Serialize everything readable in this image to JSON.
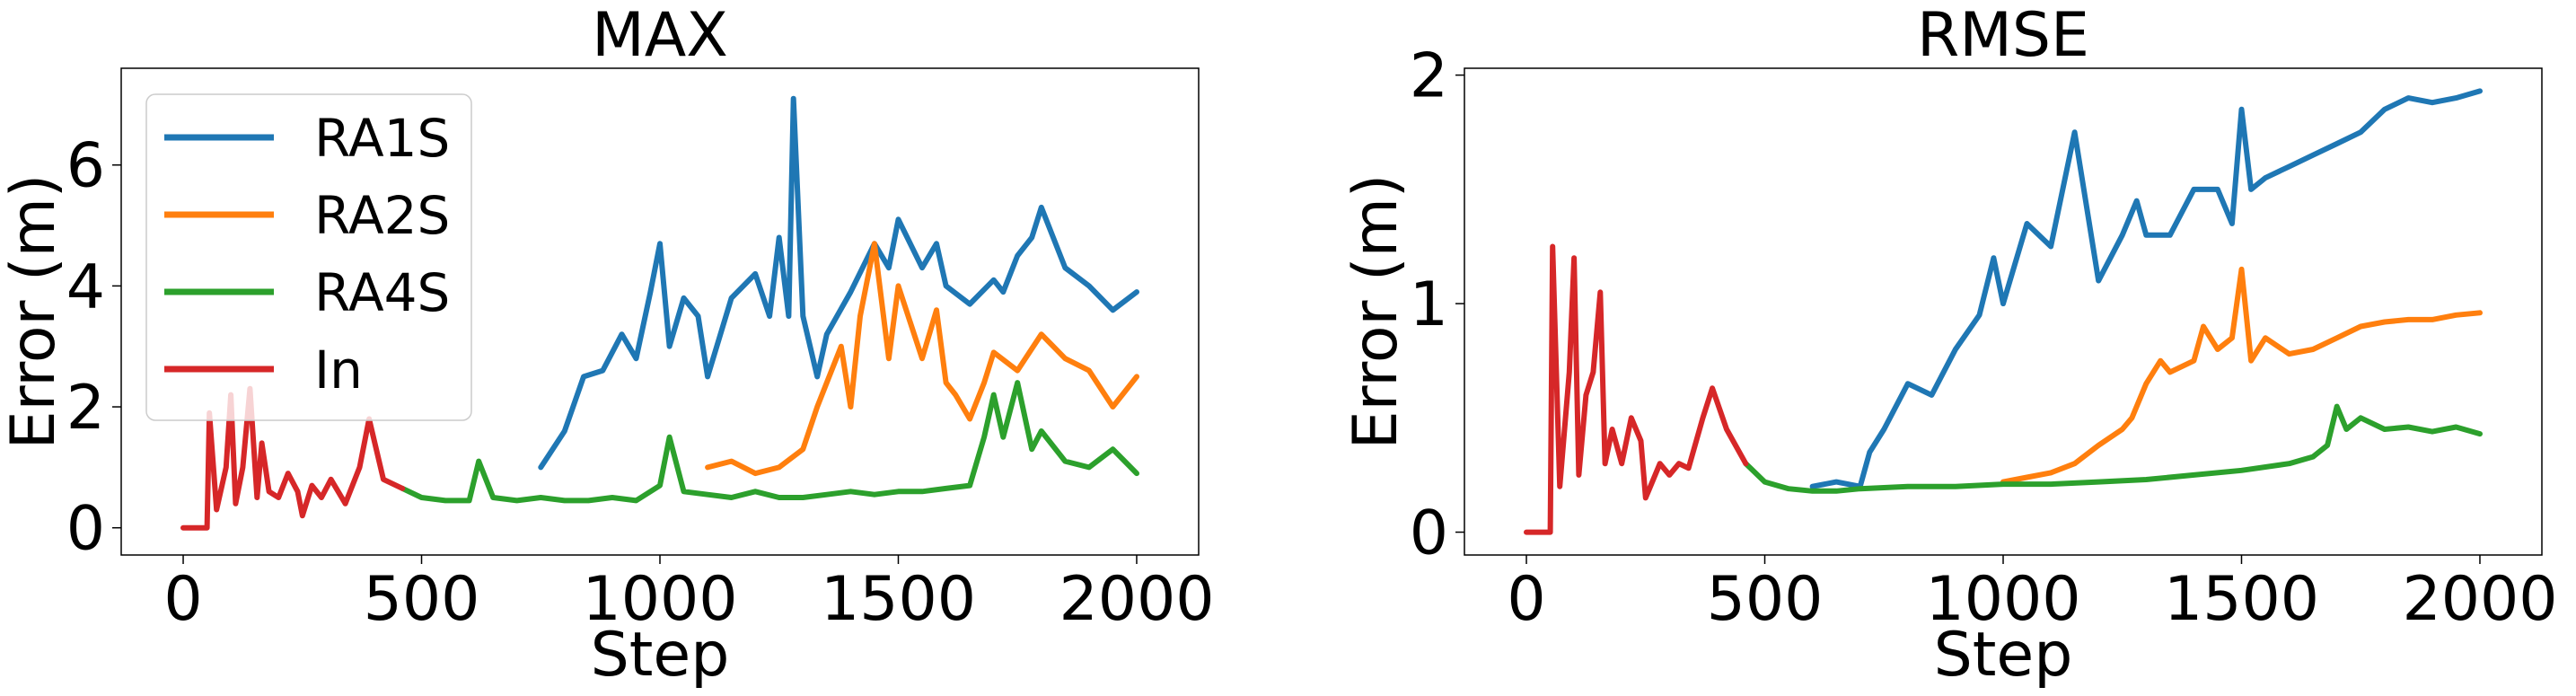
{
  "chart_data": [
    {
      "type": "line",
      "title": "MAX",
      "xlabel": "Step",
      "ylabel": "Error (m)",
      "xlim": [
        -130,
        2130
      ],
      "ylim": [
        -0.45,
        7.6
      ],
      "xticks": [
        0,
        500,
        1000,
        1500,
        2000
      ],
      "xtick_labels": [
        "0",
        "500",
        "1000",
        "1500",
        "2000"
      ],
      "yticks": [
        0,
        2,
        4,
        6
      ],
      "ytick_labels": [
        "0",
        "2",
        "4",
        "6"
      ],
      "legend": {
        "placement": "upper-left",
        "entries": [
          "RA1S",
          "RA2S",
          "RA4S",
          "In"
        ]
      },
      "grid": false,
      "series": [
        {
          "name": "RA1S",
          "color": "#1f77b4",
          "x": [
            750,
            800,
            840,
            880,
            920,
            950,
            980,
            1000,
            1020,
            1050,
            1080,
            1100,
            1150,
            1200,
            1230,
            1250,
            1270,
            1280,
            1300,
            1330,
            1350,
            1400,
            1450,
            1480,
            1500,
            1550,
            1580,
            1600,
            1650,
            1700,
            1720,
            1750,
            1780,
            1800,
            1820,
            1850,
            1900,
            1950,
            2000
          ],
          "y": [
            1.0,
            1.6,
            2.5,
            2.6,
            3.2,
            2.8,
            3.9,
            4.7,
            3.0,
            3.8,
            3.5,
            2.5,
            3.8,
            4.2,
            3.5,
            4.8,
            3.5,
            7.1,
            3.5,
            2.5,
            3.2,
            3.9,
            4.7,
            4.3,
            5.1,
            4.3,
            4.7,
            4.0,
            3.7,
            4.1,
            3.9,
            4.5,
            4.8,
            5.3,
            4.9,
            4.3,
            4.0,
            3.6,
            3.9
          ]
        },
        {
          "name": "RA2S",
          "color": "#ff7f0e",
          "x": [
            1100,
            1150,
            1200,
            1250,
            1300,
            1330,
            1350,
            1380,
            1400,
            1420,
            1450,
            1480,
            1500,
            1550,
            1580,
            1600,
            1620,
            1650,
            1680,
            1700,
            1750,
            1800,
            1850,
            1900,
            1950,
            2000
          ],
          "y": [
            1.0,
            1.1,
            0.9,
            1.0,
            1.3,
            2.0,
            2.4,
            3.0,
            2.0,
            3.5,
            4.7,
            2.8,
            4.0,
            2.8,
            3.6,
            2.4,
            2.2,
            1.8,
            2.4,
            2.9,
            2.6,
            3.2,
            2.8,
            2.6,
            2.0,
            2.5
          ]
        },
        {
          "name": "RA4S",
          "color": "#2ca02c",
          "x": [
            460,
            500,
            550,
            600,
            620,
            650,
            700,
            750,
            800,
            850,
            900,
            950,
            1000,
            1020,
            1050,
            1100,
            1150,
            1200,
            1250,
            1300,
            1350,
            1400,
            1450,
            1500,
            1550,
            1600,
            1650,
            1680,
            1700,
            1720,
            1750,
            1780,
            1800,
            1850,
            1900,
            1950,
            2000
          ],
          "y": [
            0.65,
            0.5,
            0.45,
            0.45,
            1.1,
            0.5,
            0.45,
            0.5,
            0.45,
            0.45,
            0.5,
            0.45,
            0.7,
            1.5,
            0.6,
            0.55,
            0.5,
            0.6,
            0.5,
            0.5,
            0.55,
            0.6,
            0.55,
            0.6,
            0.6,
            0.65,
            0.7,
            1.5,
            2.2,
            1.5,
            2.4,
            1.3,
            1.6,
            1.1,
            1.0,
            1.3,
            0.9
          ]
        },
        {
          "name": "In",
          "color": "#d62728",
          "x": [
            0,
            20,
            40,
            50,
            55,
            70,
            90,
            100,
            110,
            125,
            140,
            155,
            165,
            180,
            200,
            220,
            240,
            250,
            270,
            290,
            310,
            340,
            370,
            390,
            420,
            460
          ],
          "y": [
            0,
            0,
            0,
            0,
            1.9,
            0.3,
            1.0,
            2.2,
            0.4,
            1.0,
            2.3,
            0.5,
            1.4,
            0.6,
            0.5,
            0.9,
            0.6,
            0.2,
            0.7,
            0.5,
            0.8,
            0.4,
            1.0,
            1.8,
            0.8,
            0.65
          ]
        }
      ]
    },
    {
      "type": "line",
      "title": "RMSE",
      "xlabel": "Step",
      "ylabel": "Error (m)",
      "xlim": [
        -130,
        2130
      ],
      "ylim": [
        -0.1,
        2.03
      ],
      "xticks": [
        0,
        500,
        1000,
        1500,
        2000
      ],
      "xtick_labels": [
        "0",
        "500",
        "1000",
        "1500",
        "2000"
      ],
      "yticks": [
        0,
        1,
        2
      ],
      "ytick_labels": [
        "0",
        "1",
        "2"
      ],
      "grid": false,
      "series": [
        {
          "name": "RA1S",
          "color": "#1f77b4",
          "x": [
            600,
            650,
            700,
            720,
            750,
            800,
            850,
            900,
            950,
            980,
            1000,
            1050,
            1100,
            1150,
            1200,
            1250,
            1280,
            1300,
            1350,
            1400,
            1450,
            1480,
            1500,
            1520,
            1550,
            1600,
            1650,
            1700,
            1750,
            1800,
            1850,
            1900,
            1950,
            2000
          ],
          "y": [
            0.2,
            0.22,
            0.2,
            0.35,
            0.45,
            0.65,
            0.6,
            0.8,
            0.95,
            1.2,
            1.0,
            1.35,
            1.25,
            1.75,
            1.1,
            1.3,
            1.45,
            1.3,
            1.3,
            1.5,
            1.5,
            1.35,
            1.85,
            1.5,
            1.55,
            1.6,
            1.65,
            1.7,
            1.75,
            1.85,
            1.9,
            1.88,
            1.9,
            1.93
          ]
        },
        {
          "name": "RA2S",
          "color": "#ff7f0e",
          "x": [
            1000,
            1050,
            1100,
            1150,
            1200,
            1250,
            1270,
            1300,
            1330,
            1350,
            1400,
            1420,
            1450,
            1480,
            1500,
            1520,
            1550,
            1600,
            1650,
            1700,
            1750,
            1800,
            1850,
            1900,
            1950,
            2000
          ],
          "y": [
            0.22,
            0.24,
            0.26,
            0.3,
            0.38,
            0.45,
            0.5,
            0.65,
            0.75,
            0.7,
            0.75,
            0.9,
            0.8,
            0.85,
            1.15,
            0.75,
            0.85,
            0.78,
            0.8,
            0.85,
            0.9,
            0.92,
            0.93,
            0.93,
            0.95,
            0.96
          ]
        },
        {
          "name": "RA4S",
          "color": "#2ca02c",
          "x": [
            460,
            500,
            550,
            600,
            650,
            700,
            800,
            900,
            1000,
            1100,
            1200,
            1300,
            1400,
            1500,
            1600,
            1650,
            1680,
            1700,
            1720,
            1750,
            1800,
            1850,
            1900,
            1950,
            2000
          ],
          "y": [
            0.3,
            0.22,
            0.19,
            0.18,
            0.18,
            0.19,
            0.2,
            0.2,
            0.21,
            0.21,
            0.22,
            0.23,
            0.25,
            0.27,
            0.3,
            0.33,
            0.38,
            0.55,
            0.45,
            0.5,
            0.45,
            0.46,
            0.44,
            0.46,
            0.43
          ]
        },
        {
          "name": "In",
          "color": "#d62728",
          "x": [
            0,
            20,
            40,
            50,
            55,
            70,
            90,
            100,
            110,
            125,
            140,
            155,
            165,
            180,
            200,
            220,
            240,
            250,
            260,
            280,
            300,
            320,
            340,
            370,
            390,
            420,
            460
          ],
          "y": [
            0,
            0,
            0,
            0,
            1.25,
            0.2,
            0.7,
            1.2,
            0.25,
            0.6,
            0.7,
            1.05,
            0.3,
            0.45,
            0.3,
            0.5,
            0.4,
            0.15,
            0.2,
            0.3,
            0.25,
            0.3,
            0.28,
            0.5,
            0.63,
            0.45,
            0.3
          ]
        }
      ]
    }
  ]
}
